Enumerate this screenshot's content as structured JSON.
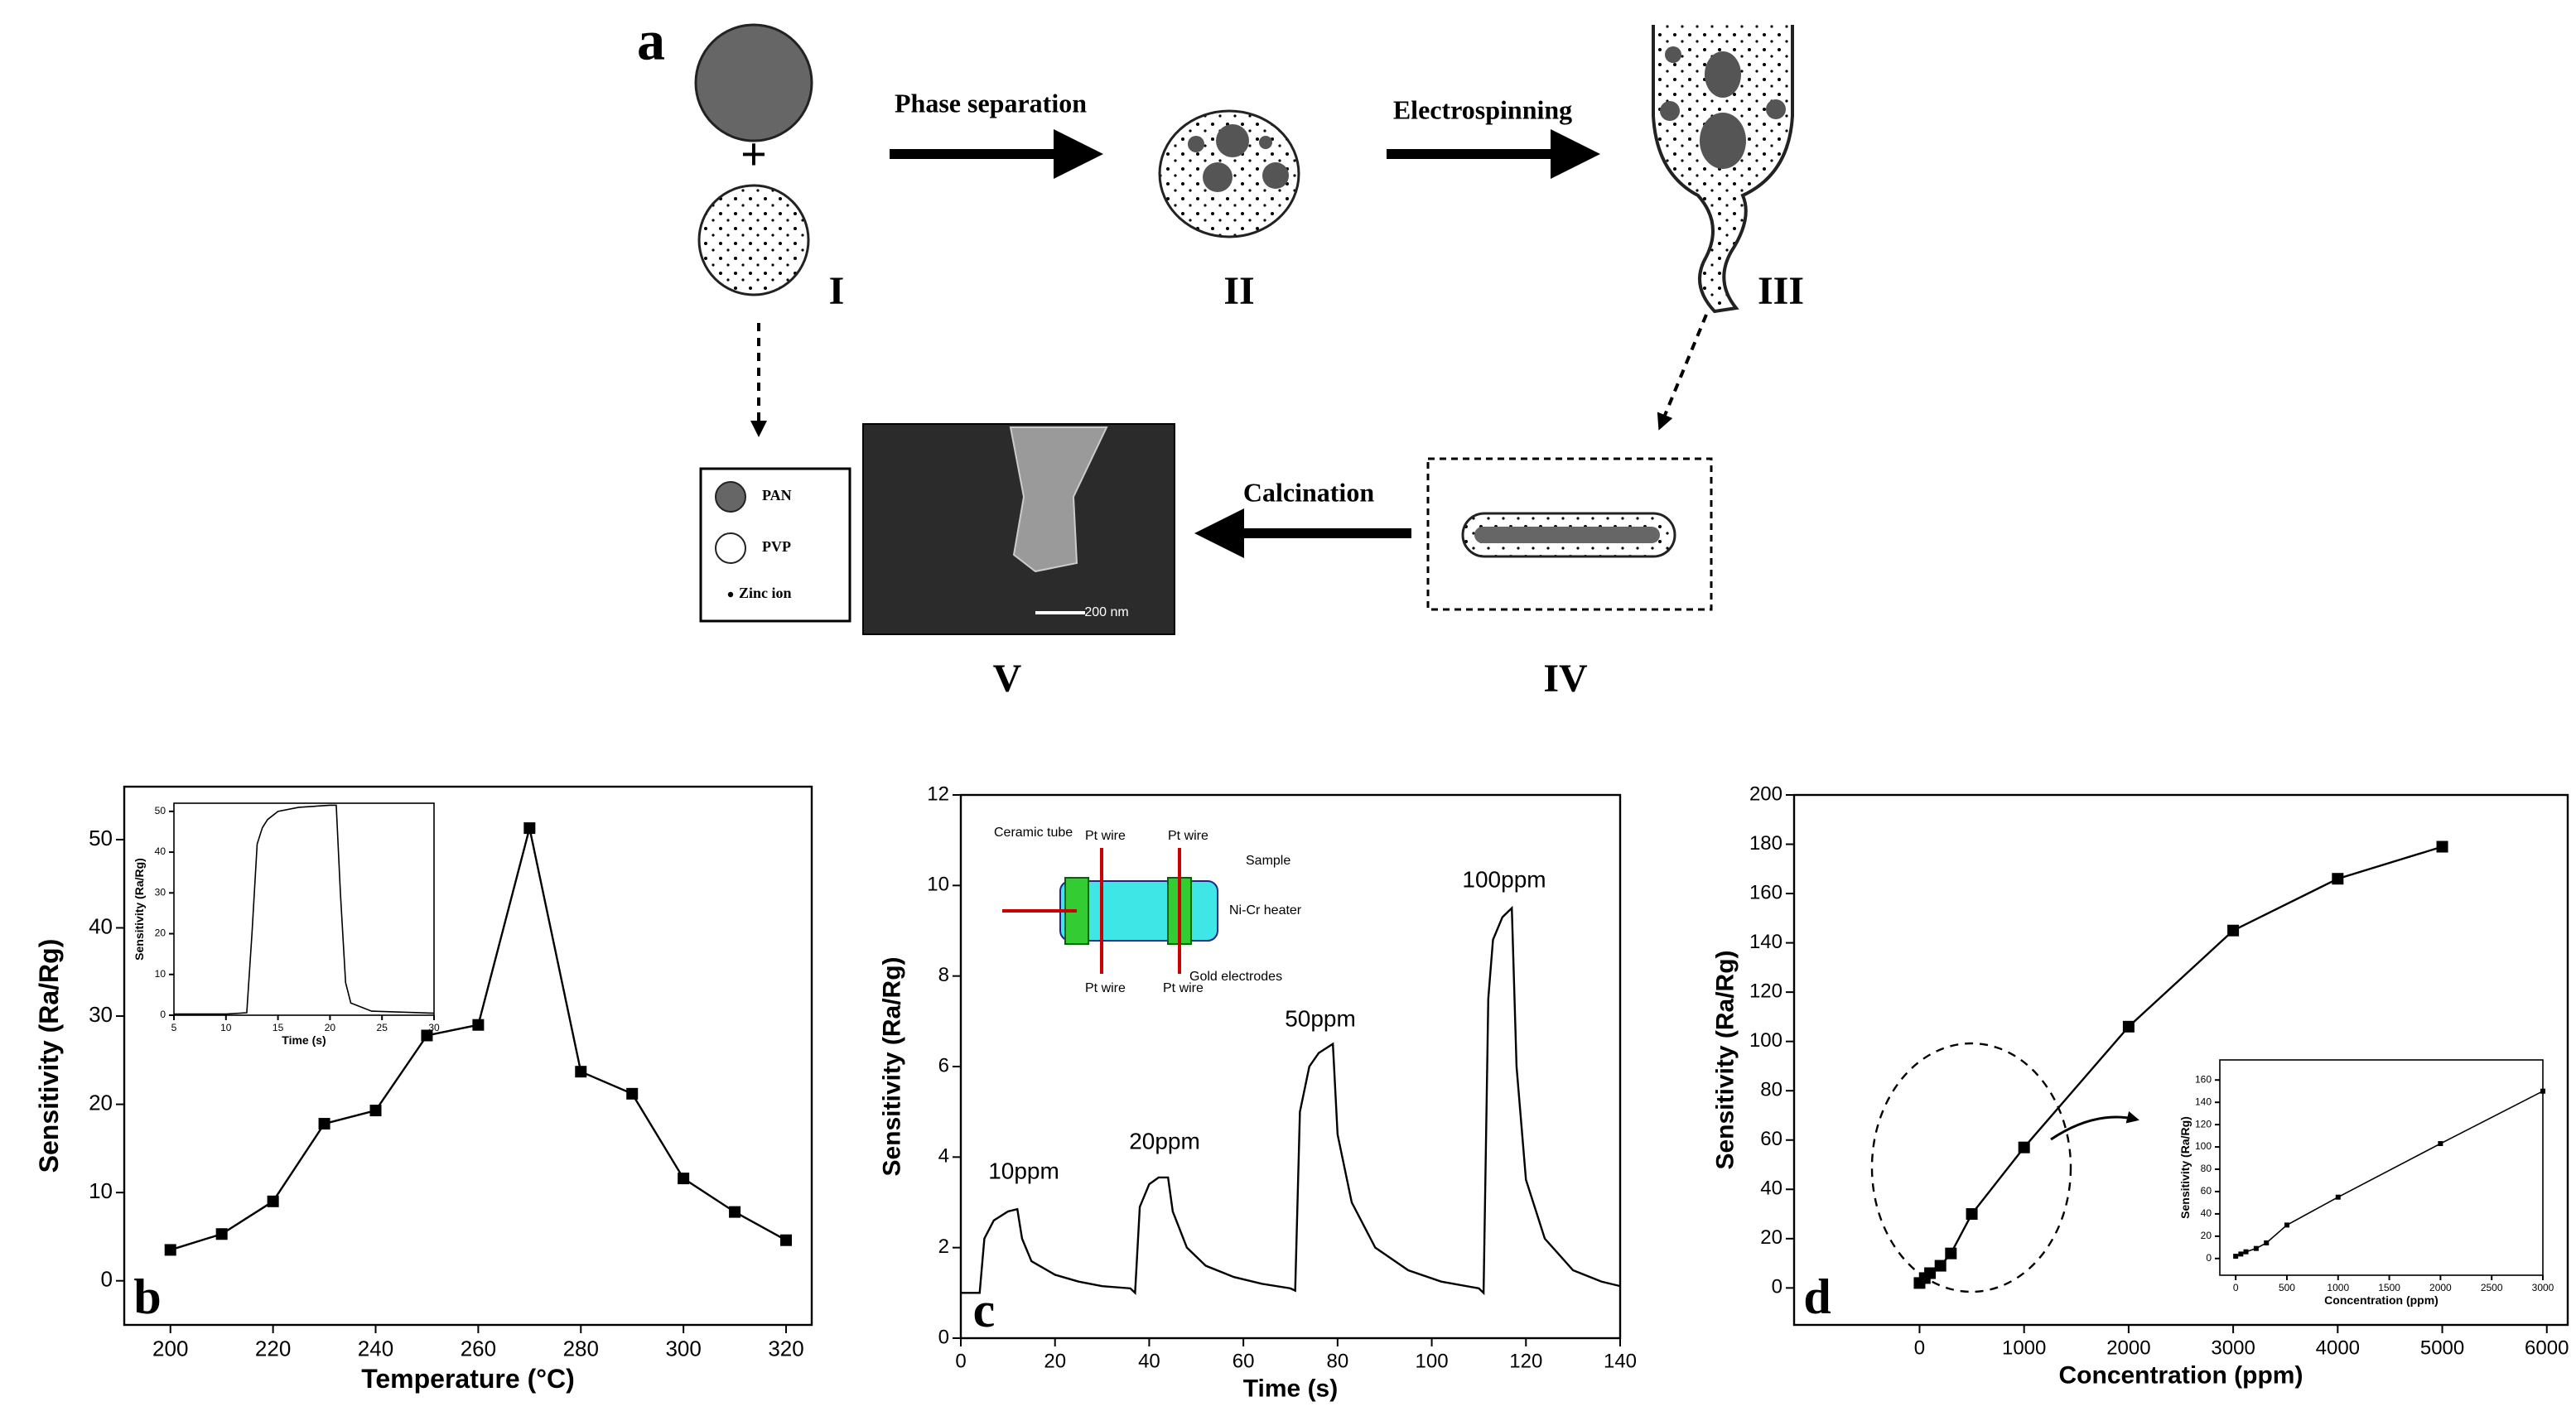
{
  "diagram": {
    "panel": "a",
    "stages": [
      "I",
      "II",
      "III",
      "IV",
      "V"
    ],
    "steps": [
      "Phase separation",
      "Electrospinning",
      "Calcination"
    ],
    "legend": [
      "PAN",
      "PVP",
      "Zinc ion"
    ],
    "scale_bar": "200 nm"
  },
  "chart_data": [
    {
      "type": "line",
      "label": "b",
      "x_label": "Temperature (°C)",
      "y_label": "Sensitivity (Ra/Rg)",
      "markers": true,
      "color": "#000000",
      "x": [
        200,
        210,
        220,
        230,
        240,
        250,
        260,
        270,
        280,
        290,
        300,
        310,
        320
      ],
      "values": [
        3.5,
        5.3,
        9,
        17.8,
        19.3,
        27.8,
        29,
        51.3,
        23.7,
        21.2,
        11.6,
        7.8,
        4.6
      ],
      "xlim": [
        191,
        325
      ],
      "ylim": [
        -5,
        56
      ],
      "xticks": [
        200,
        220,
        240,
        260,
        280,
        300,
        320
      ],
      "yticks": [
        0,
        10,
        20,
        30,
        40,
        50
      ]
    },
    {
      "type": "line",
      "x_label": "Time (s)",
      "y_label": "Sensitivity (Ra/Rg)",
      "markers": false,
      "color": "#000000",
      "x": [
        5,
        10,
        12,
        12.5,
        13,
        13.5,
        14,
        15,
        17,
        20,
        20.6,
        21,
        21.5,
        22,
        24,
        30
      ],
      "values": [
        0.3,
        0.3,
        0.6,
        20,
        42,
        46,
        48,
        50,
        51,
        51.5,
        51.5,
        30,
        8,
        3,
        1,
        0.5
      ],
      "xlim": [
        5,
        30
      ],
      "ylim": [
        0,
        52
      ],
      "xticks": [
        5,
        10,
        15,
        20,
        25,
        30
      ],
      "yticks": [
        0,
        10,
        20,
        30,
        40,
        50
      ]
    },
    {
      "type": "line",
      "label": "c",
      "x_label": "Time (s)",
      "y_label": "Sensitivity (Ra/Rg)",
      "markers": false,
      "color": "#000000",
      "x": [
        0,
        4,
        5,
        7,
        10,
        12,
        13,
        15,
        20,
        25,
        30,
        36,
        37,
        38,
        40,
        42,
        44,
        45,
        48,
        52,
        58,
        64,
        70,
        71,
        72,
        74,
        76,
        79,
        80,
        83,
        88,
        95,
        102,
        110,
        111,
        112,
        113,
        115,
        117,
        118,
        120,
        124,
        130,
        136,
        140
      ],
      "values": [
        1,
        1,
        2.2,
        2.6,
        2.8,
        2.85,
        2.2,
        1.7,
        1.4,
        1.25,
        1.15,
        1.1,
        1,
        2.9,
        3.4,
        3.55,
        3.55,
        2.8,
        2,
        1.6,
        1.35,
        1.2,
        1.1,
        1.05,
        5,
        6,
        6.3,
        6.5,
        4.5,
        3,
        2,
        1.5,
        1.25,
        1.1,
        1,
        7.5,
        8.8,
        9.3,
        9.5,
        6,
        3.5,
        2.2,
        1.5,
        1.25,
        1.15
      ],
      "xlim": [
        0,
        140
      ],
      "ylim": [
        0,
        12
      ],
      "xticks": [
        0,
        20,
        40,
        60,
        80,
        100,
        120,
        140
      ],
      "yticks": [
        0,
        2,
        4,
        6,
        8,
        10,
        12
      ],
      "annotations": [
        "10ppm",
        "20ppm",
        "50ppm",
        "100ppm"
      ],
      "schematic_labels": [
        "Ceramic tube",
        "Pt wire",
        "Pt wire",
        "Sample",
        "Ni-Cr heater",
        "Gold electrodes",
        "Pt wire",
        "Pt wire"
      ]
    },
    {
      "type": "line",
      "label": "d",
      "x_label": "Concentration (ppm)",
      "y_label": "Sensitivity (Ra/Rg)",
      "markers": true,
      "color": "#000000",
      "x": [
        0,
        50,
        100,
        200,
        300,
        500,
        1000,
        2000,
        3000,
        4000,
        5000
      ],
      "values": [
        2,
        4,
        6,
        9,
        14,
        30,
        57,
        106,
        145,
        166,
        179
      ],
      "xlim": [
        -1200,
        6200
      ],
      "ylim": [
        -15,
        200
      ],
      "xticks": [
        0,
        1000,
        2000,
        3000,
        4000,
        5000,
        6000
      ],
      "yticks": [
        0,
        20,
        40,
        60,
        80,
        100,
        120,
        140,
        160,
        180,
        200
      ]
    },
    {
      "type": "line",
      "x_label": "Concentration (ppm)",
      "y_label": "Sensitivity (Ra/Rg)",
      "markers": true,
      "color": "#000000",
      "x": [
        0,
        50,
        100,
        200,
        300,
        500,
        1000,
        2000,
        3000
      ],
      "values": [
        2,
        4,
        6,
        9,
        14,
        30,
        55,
        103,
        150
      ],
      "xlim": [
        -155,
        3000
      ],
      "ylim": [
        -15,
        178
      ],
      "xticks": [
        0,
        500,
        1000,
        1500,
        2000,
        2500,
        3000
      ],
      "yticks": [
        0,
        20,
        40,
        60,
        80,
        100,
        120,
        140,
        160
      ]
    }
  ]
}
